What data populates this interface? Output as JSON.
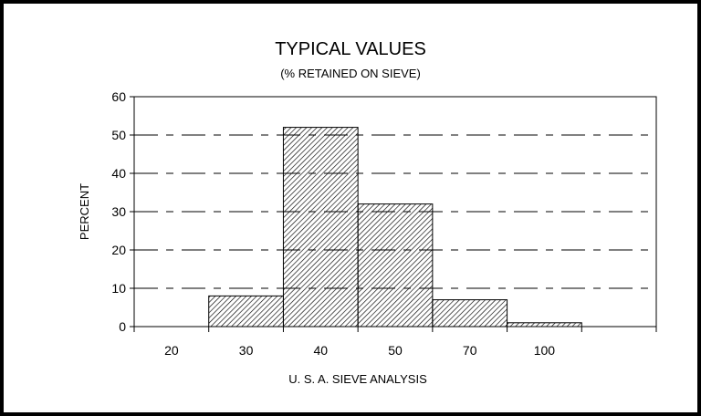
{
  "chart_data": {
    "type": "bar",
    "title": "TYPICAL VALUES",
    "subtitle": "(% RETAINED ON SIEVE)",
    "xlabel": "U. S. A. SIEVE ANALYSIS",
    "ylabel": "PERCENT",
    "categories": [
      "20",
      "30",
      "40",
      "50",
      "70",
      "100"
    ],
    "values": [
      0,
      8,
      52,
      32,
      7,
      1
    ],
    "ylim": [
      0,
      60
    ],
    "yticks": [
      "0",
      "10",
      "20",
      "30",
      "40",
      "50",
      "60"
    ],
    "grid": "dashed horizontal",
    "bar_fill": "diagonal hatch",
    "colors": {
      "ink": "#000000",
      "background": "#ffffff"
    }
  }
}
